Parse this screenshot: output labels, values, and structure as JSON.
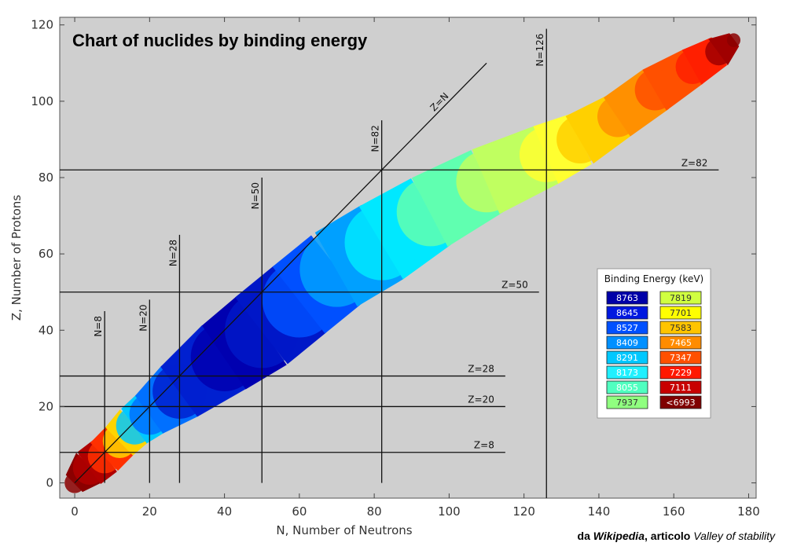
{
  "chart_data": {
    "type": "heatmap",
    "title": "Chart of nuclides by binding energy",
    "xlabel": "N, Number of Neutrons",
    "ylabel": "Z, Number of Protons",
    "xlim": [
      -4,
      182
    ],
    "ylim": [
      -4,
      122
    ],
    "xticks": [
      0,
      20,
      40,
      60,
      80,
      100,
      120,
      140,
      160,
      180
    ],
    "yticks": [
      0,
      20,
      40,
      60,
      80,
      100,
      120
    ],
    "background": "#cfcfcf",
    "lines": [
      {
        "label": "Z=N",
        "kind": "diagonal",
        "from": [
          0,
          0
        ],
        "to": [
          110,
          110
        ]
      },
      {
        "label": "N=8",
        "kind": "vertical",
        "n": 8,
        "z_range": [
          0,
          45
        ]
      },
      {
        "label": "N=20",
        "kind": "vertical",
        "n": 20,
        "z_range": [
          0,
          48
        ]
      },
      {
        "label": "N=28",
        "kind": "vertical",
        "n": 28,
        "z_range": [
          0,
          65
        ]
      },
      {
        "label": "N=50",
        "kind": "vertical",
        "n": 50,
        "z_range": [
          0,
          80
        ]
      },
      {
        "label": "N=82",
        "kind": "vertical",
        "n": 82,
        "z_range": [
          0,
          95
        ]
      },
      {
        "label": "N=126",
        "kind": "vertical",
        "n": 126,
        "z_range": [
          -4,
          119
        ]
      },
      {
        "label": "Z=8",
        "kind": "horizontal",
        "z": 8,
        "n_range": [
          -4,
          115
        ]
      },
      {
        "label": "Z=20",
        "kind": "horizontal",
        "z": 20,
        "n_range": [
          -4,
          115
        ]
      },
      {
        "label": "Z=28",
        "kind": "horizontal",
        "z": 28,
        "n_range": [
          -4,
          115
        ]
      },
      {
        "label": "Z=50",
        "kind": "horizontal",
        "z": 50,
        "n_range": [
          -4,
          124
        ]
      },
      {
        "label": "Z=82",
        "kind": "horizontal",
        "z": 82,
        "n_range": [
          -4,
          172
        ]
      }
    ],
    "band": [
      {
        "n": 0,
        "z": 0,
        "w": 3,
        "color": "#8b0000"
      },
      {
        "n": 4,
        "z": 4,
        "w": 5,
        "color": "#b00000"
      },
      {
        "n": 8,
        "z": 7,
        "w": 5,
        "color": "#ff3000"
      },
      {
        "n": 12,
        "z": 11,
        "w": 5,
        "color": "#ffd400"
      },
      {
        "n": 16,
        "z": 15,
        "w": 5.5,
        "color": "#00c8ff"
      },
      {
        "n": 20,
        "z": 18,
        "w": 6,
        "color": "#0070ff"
      },
      {
        "n": 28,
        "z": 24,
        "w": 8,
        "color": "#0020d0"
      },
      {
        "n": 40,
        "z": 33,
        "w": 10,
        "color": "#0000b0"
      },
      {
        "n": 50,
        "z": 40,
        "w": 11,
        "color": "#0018c8"
      },
      {
        "n": 60,
        "z": 48,
        "w": 11,
        "color": "#0050ff"
      },
      {
        "n": 70,
        "z": 56,
        "w": 11,
        "color": "#00a0ff"
      },
      {
        "n": 82,
        "z": 63,
        "w": 11,
        "color": "#00e8ff"
      },
      {
        "n": 95,
        "z": 71,
        "w": 10,
        "color": "#60ffb0"
      },
      {
        "n": 110,
        "z": 79,
        "w": 9,
        "color": "#c0ff60"
      },
      {
        "n": 126,
        "z": 86,
        "w": 8,
        "color": "#ffff30"
      },
      {
        "n": 135,
        "z": 90,
        "w": 7,
        "color": "#ffd000"
      },
      {
        "n": 145,
        "z": 96,
        "w": 6,
        "color": "#ff9000"
      },
      {
        "n": 155,
        "z": 103,
        "w": 6,
        "color": "#ff5000"
      },
      {
        "n": 165,
        "z": 109,
        "w": 5,
        "color": "#ff2000"
      },
      {
        "n": 172,
        "z": 113,
        "w": 4,
        "color": "#a00000"
      },
      {
        "n": 176,
        "z": 116,
        "w": 2,
        "color": "#8b0000"
      }
    ],
    "legend": {
      "title": "Binding Energy (keV)",
      "placement": "right",
      "entries": [
        {
          "label": "8763",
          "color": "#0000a8"
        },
        {
          "label": "8645",
          "color": "#0018e0"
        },
        {
          "label": "8527",
          "color": "#0050ff"
        },
        {
          "label": "8409",
          "color": "#0090ff"
        },
        {
          "label": "8291",
          "color": "#00c8ff"
        },
        {
          "label": "8173",
          "color": "#20f0ff"
        },
        {
          "label": "8055",
          "color": "#50ffc0"
        },
        {
          "label": "7937",
          "color": "#90ff80"
        },
        {
          "label": "7819",
          "color": "#d0ff40"
        },
        {
          "label": "7701",
          "color": "#ffff00"
        },
        {
          "label": "7583",
          "color": "#ffc400"
        },
        {
          "label": "7465",
          "color": "#ff8c00"
        },
        {
          "label": "7347",
          "color": "#ff5000"
        },
        {
          "label": "7229",
          "color": "#ff1800"
        },
        {
          "label": "7111",
          "color": "#c80000"
        },
        {
          "label": "<6993",
          "color": "#800000"
        }
      ],
      "text_light": [
        "8763",
        "8645",
        "8527",
        "8409",
        "8291",
        "8173",
        "8055",
        "7465",
        "7347",
        "7229",
        "7111",
        "<6993"
      ]
    }
  },
  "credit": {
    "prefix": "da",
    "source": "Wikipedia",
    "middle": ", articolo",
    "article": "Valley of stability"
  }
}
